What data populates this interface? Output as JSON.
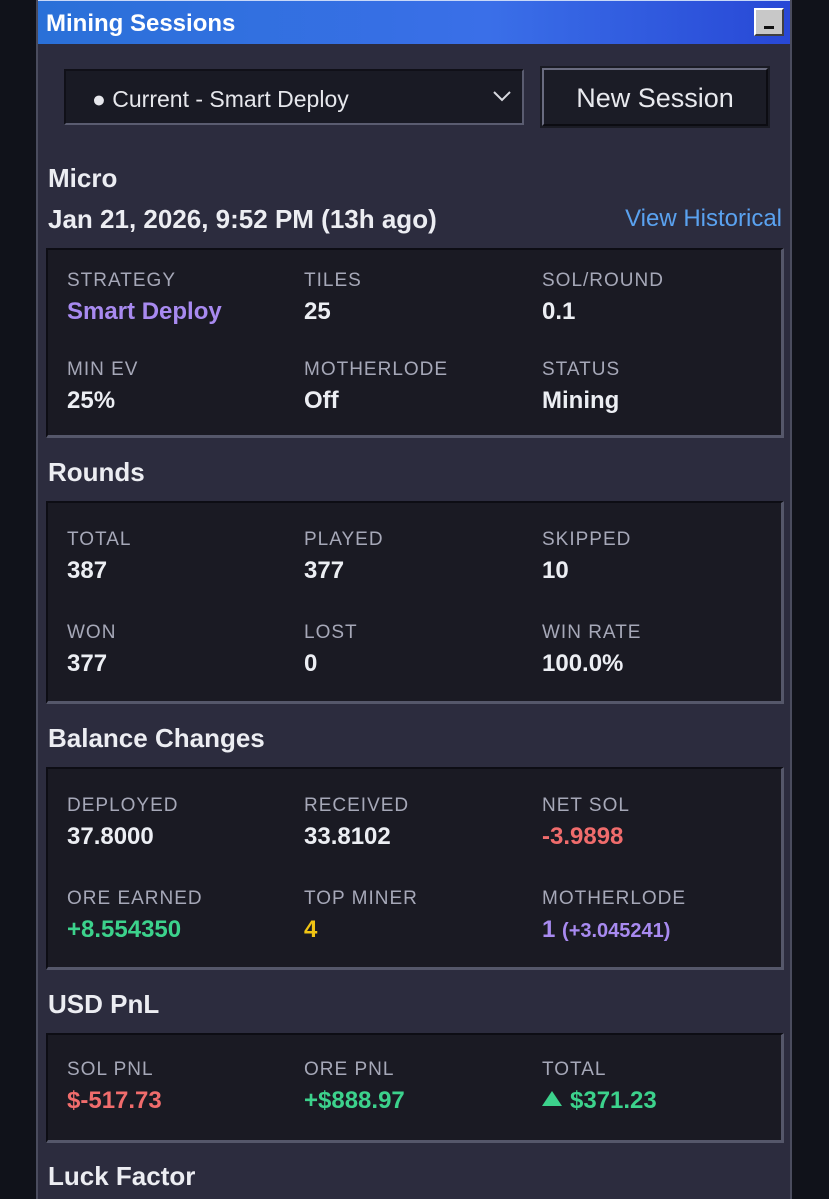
{
  "window": {
    "title": "Mining Sessions"
  },
  "session_select": {
    "value": "● Current - Smart Deploy"
  },
  "new_session_label": "New Session",
  "session": {
    "name": "Micro",
    "datetime": "Jan 21, 2026, 9:52 PM (13h ago)",
    "view_historical": "View Historical"
  },
  "config": {
    "strategy_label": "STRATEGY",
    "strategy": "Smart Deploy",
    "tiles_label": "TILES",
    "tiles": "25",
    "sol_round_label": "SOL/ROUND",
    "sol_round": "0.1",
    "min_ev_label": "MIN EV",
    "min_ev": "25%",
    "motherlode_label": "MOTHERLODE",
    "motherlode": "Off",
    "status_label": "STATUS",
    "status": "Mining"
  },
  "rounds": {
    "title": "Rounds",
    "total_label": "TOTAL",
    "total": "387",
    "played_label": "PLAYED",
    "played": "377",
    "skipped_label": "SKIPPED",
    "skipped": "10",
    "won_label": "WON",
    "won": "377",
    "lost_label": "LOST",
    "lost": "0",
    "win_rate_label": "WIN RATE",
    "win_rate": "100.0%"
  },
  "balance": {
    "title": "Balance Changes",
    "deployed_label": "DEPLOYED",
    "deployed": "37.8000",
    "received_label": "RECEIVED",
    "received": "33.8102",
    "net_sol_label": "NET SOL",
    "net_sol": "-3.9898",
    "ore_earned_label": "ORE EARNED",
    "ore_earned": "+8.554350",
    "top_miner_label": "TOP MINER",
    "top_miner": "4",
    "motherlode_label": "MOTHERLODE",
    "motherlode_count": "1",
    "motherlode_amount": "(+3.045241)"
  },
  "usd_pnl": {
    "title": "USD PnL",
    "sol_pnl_label": "SOL PNL",
    "sol_pnl": "$-517.73",
    "ore_pnl_label": "ORE PNL",
    "ore_pnl": "+$888.97",
    "total_label": "TOTAL",
    "total": "$371.23"
  },
  "luck": {
    "title": "Luck Factor"
  },
  "colors": {
    "accent_blue": "#5aa2f0",
    "strategy_purple": "#a88af0",
    "negative_red": "#f06c6c",
    "positive_green": "#3cd28c",
    "top_miner_yellow": "#f0c414"
  },
  "icons": {
    "select": "chevron-down-icon",
    "minimize": "minimize-icon",
    "trend": "triangle-up-icon"
  }
}
